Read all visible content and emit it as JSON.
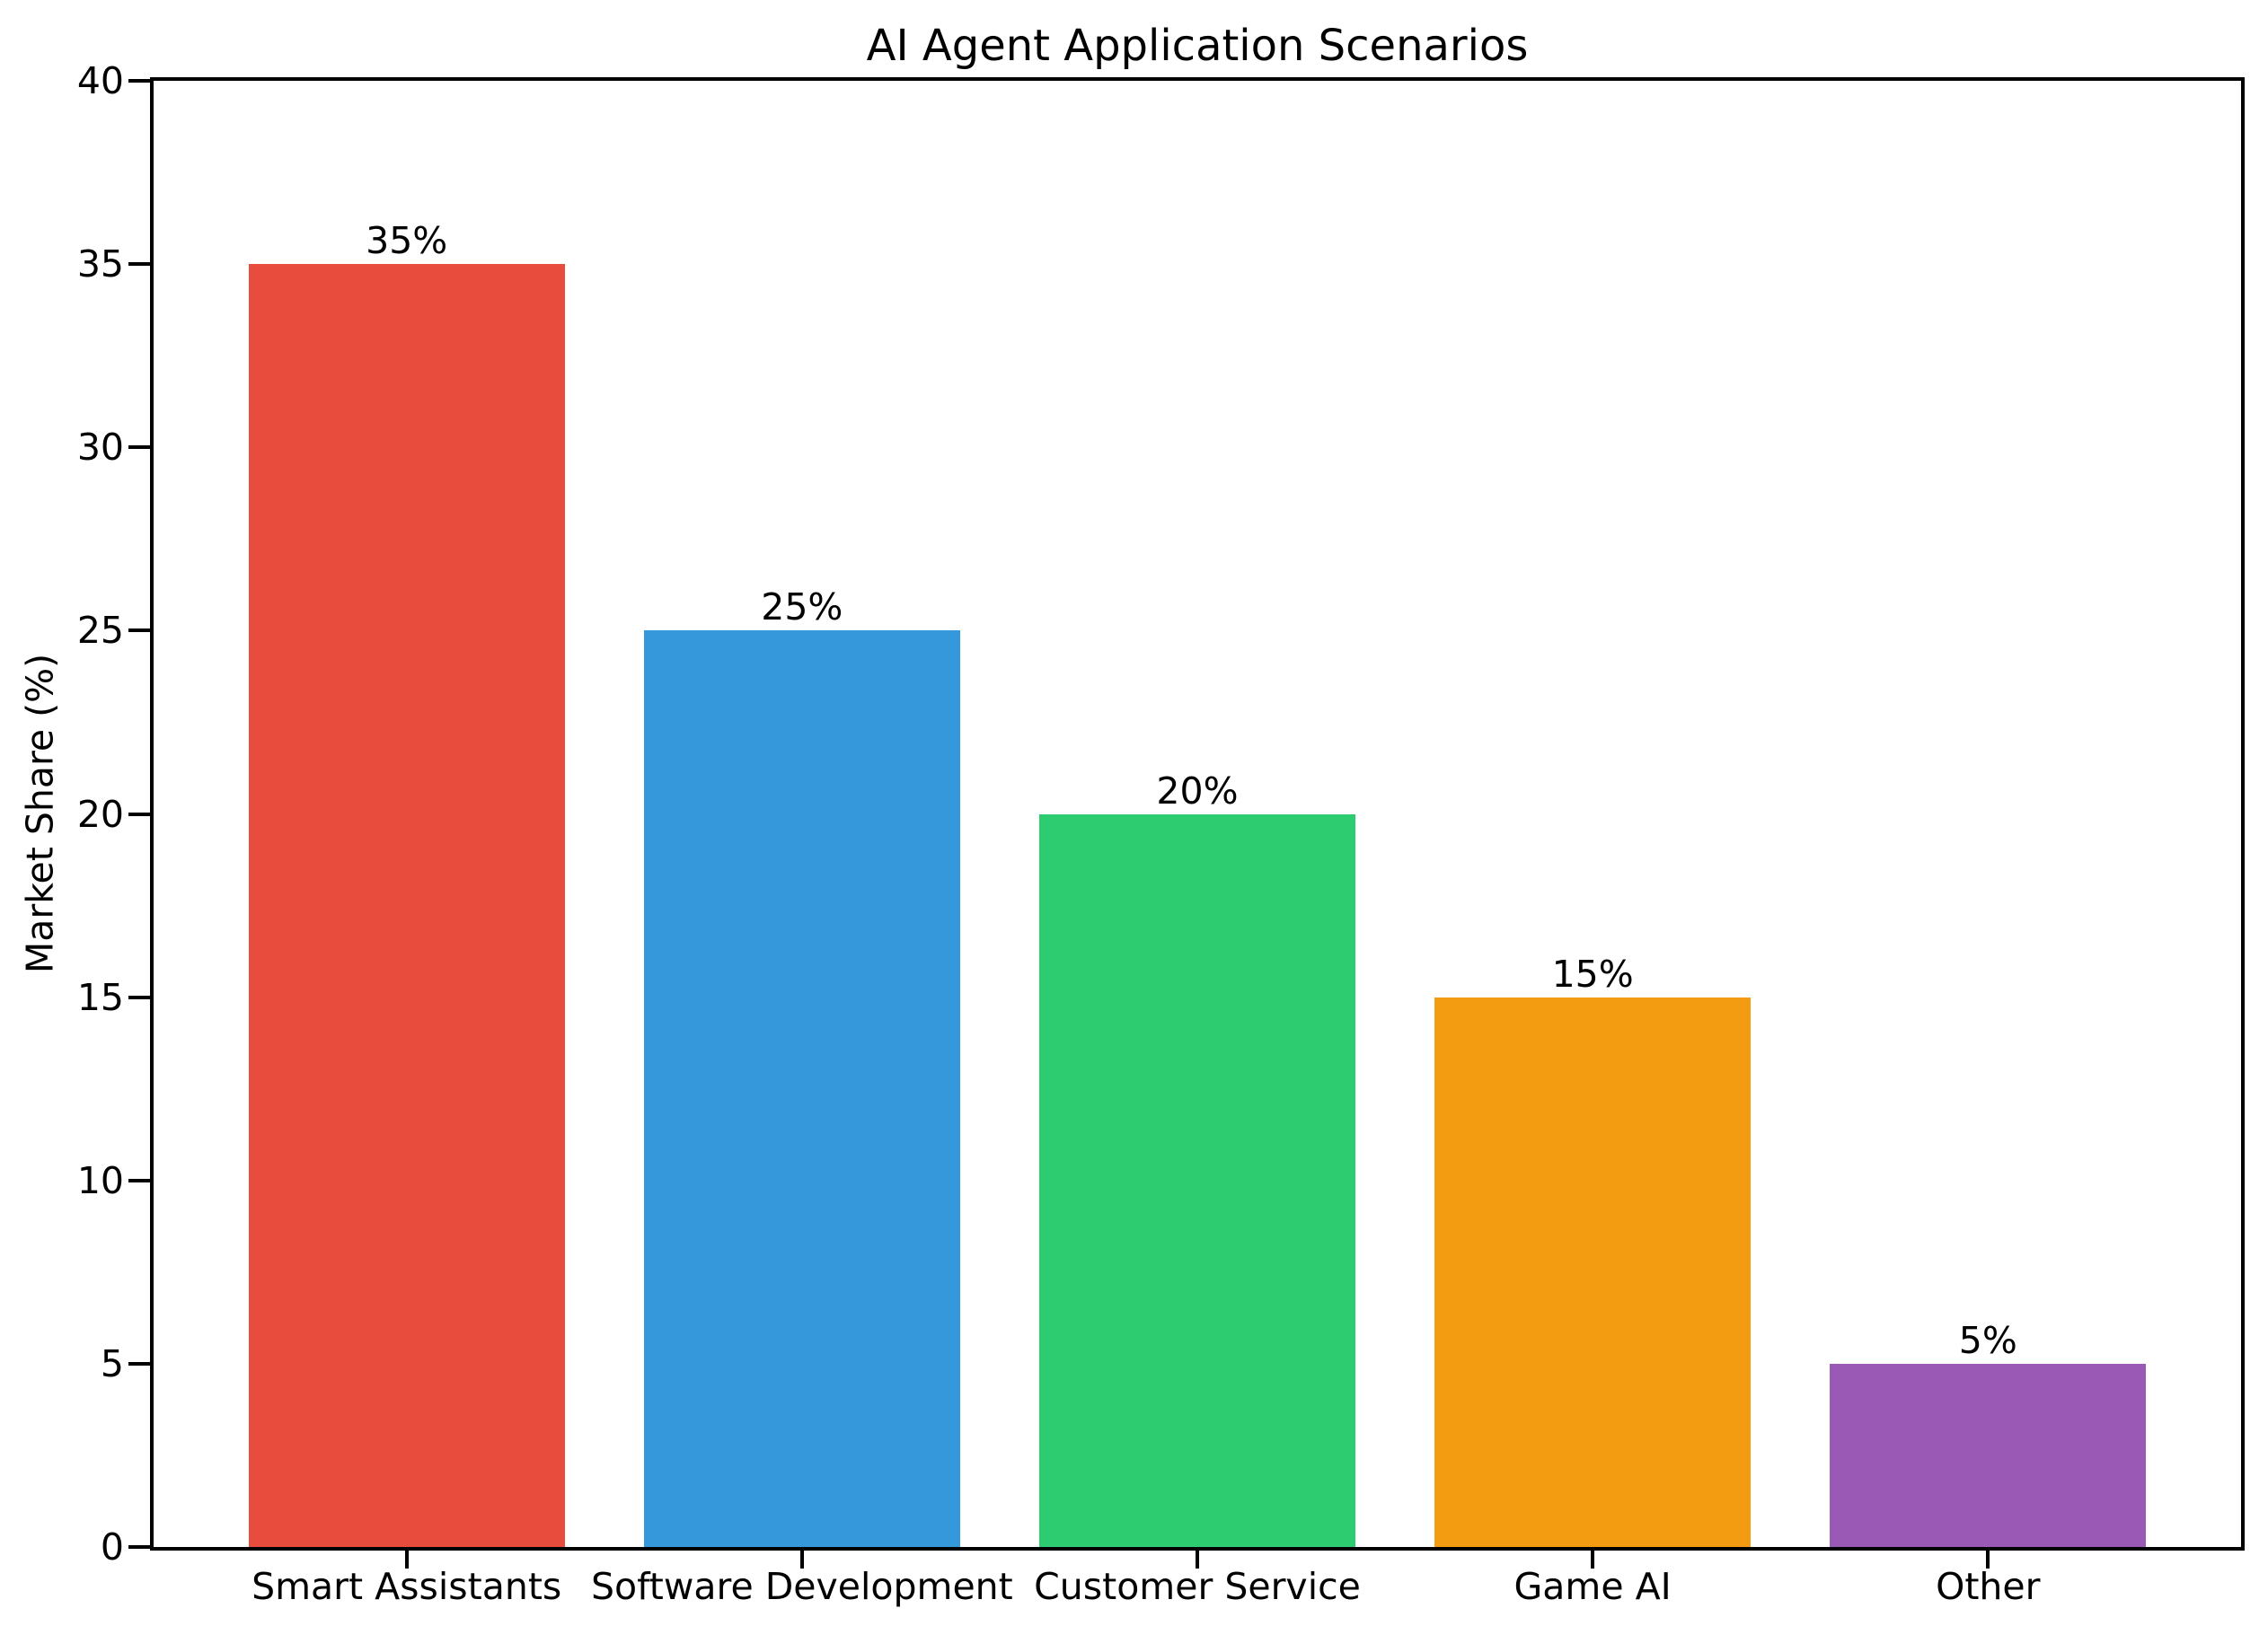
{
  "chart_data": {
    "type": "bar",
    "title": "AI Agent Application Scenarios",
    "xlabel": "",
    "ylabel": "Market Share (%)",
    "categories": [
      "Smart Assistants",
      "Software Development",
      "Customer Service",
      "Game AI",
      "Other"
    ],
    "values": [
      35,
      25,
      20,
      15,
      5
    ],
    "value_labels": [
      "35%",
      "25%",
      "20%",
      "15%",
      "5%"
    ],
    "bar_colors": [
      "#e74c3c",
      "#3498db",
      "#2ecc71",
      "#f39c12",
      "#9b59b6"
    ],
    "ylim": [
      0,
      40
    ],
    "yticks": [
      0,
      5,
      10,
      15,
      20,
      25,
      30,
      35,
      40
    ],
    "ytick_labels": [
      "0",
      "5",
      "10",
      "15",
      "20",
      "25",
      "30",
      "35",
      "40"
    ],
    "bar_width_fraction": 0.8,
    "grid": false,
    "legend": "none",
    "background_color": "#ffffff",
    "spine_color": "#000000",
    "text_color": "#000000"
  }
}
